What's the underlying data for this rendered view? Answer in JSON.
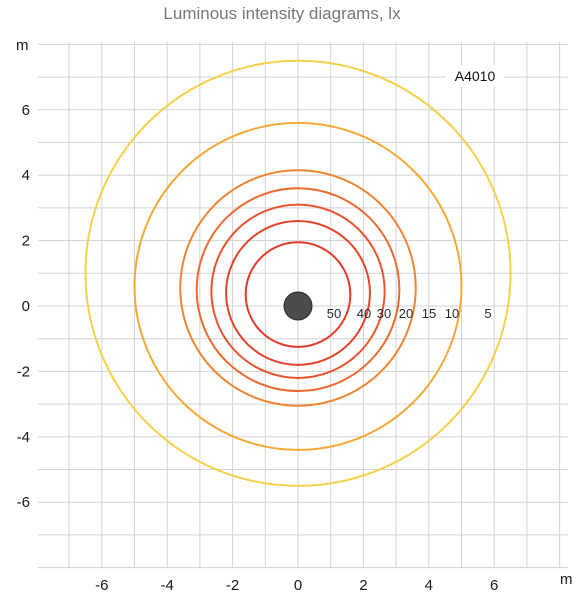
{
  "chart_data": {
    "type": "contour",
    "title": "Luminous intensity diagrams, lx",
    "model": "A4010",
    "x_unit": "m",
    "y_unit": "m",
    "xlim": [
      -7.5,
      8.5
    ],
    "ylim": [
      -8,
      8
    ],
    "x_ticks": [
      "-6",
      "-4",
      "-2",
      "0",
      "2",
      "4",
      "6"
    ],
    "y_ticks": [
      "6",
      "4",
      "2",
      "0",
      "-2",
      "-4",
      "-6"
    ],
    "x_tick_values": [
      -6,
      -4,
      -2,
      0,
      2,
      4,
      6
    ],
    "y_tick_values": [
      6,
      4,
      2,
      0,
      -2,
      -4,
      -6
    ],
    "grid": true,
    "light_source": {
      "x": 0,
      "y": 0
    },
    "isolines": [
      {
        "label": "50",
        "lux": 50,
        "center_y": 0.35,
        "radius": 1.6,
        "color": "#e23a2b"
      },
      {
        "label": "40",
        "lux": 40,
        "center_y": 0.4,
        "radius": 2.2,
        "color": "#e5432c"
      },
      {
        "label": "30",
        "lux": 30,
        "center_y": 0.45,
        "radius": 2.65,
        "color": "#e9542d"
      },
      {
        "label": "20",
        "lux": 20,
        "center_y": 0.5,
        "radius": 3.1,
        "color": "#ed6a2f"
      },
      {
        "label": "15",
        "lux": 15,
        "center_y": 0.55,
        "radius": 3.6,
        "color": "#f08531"
      },
      {
        "label": "10",
        "lux": 10,
        "center_y": 0.6,
        "radius": 5.0,
        "color": "#f4a936"
      },
      {
        "label": "5",
        "lux": 5,
        "center_y": 1.0,
        "radius": 6.5,
        "color": "#f6d04a"
      }
    ]
  }
}
